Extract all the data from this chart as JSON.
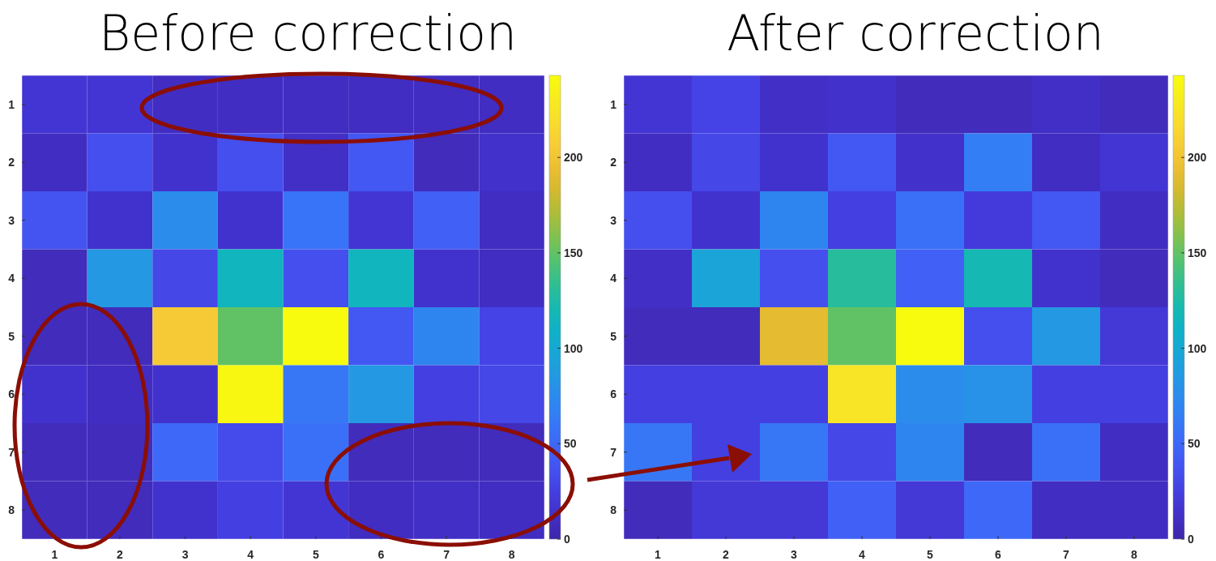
{
  "chart_data": [
    {
      "type": "heatmap",
      "title": "Before correction",
      "categories": [
        "1",
        "2",
        "3",
        "4",
        "5",
        "6",
        "7",
        "8"
      ],
      "y_categories": [
        "1",
        "2",
        "3",
        "4",
        "5",
        "6",
        "7",
        "8"
      ],
      "clim": [
        0,
        243
      ],
      "cticks": [
        0,
        50,
        100,
        150,
        200
      ],
      "cells": [
        [
          18,
          18,
          10,
          10,
          10,
          10,
          10,
          10
        ],
        [
          10,
          35,
          15,
          35,
          12,
          40,
          8,
          14
        ],
        [
          38,
          15,
          75,
          15,
          58,
          18,
          45,
          10
        ],
        [
          8,
          85,
          30,
          115,
          35,
          115,
          15,
          10
        ],
        [
          8,
          8,
          205,
          150,
          243,
          40,
          70,
          28
        ],
        [
          15,
          10,
          15,
          240,
          60,
          85,
          25,
          30
        ],
        [
          8,
          8,
          50,
          32,
          55,
          8,
          8,
          8
        ],
        [
          8,
          8,
          15,
          25,
          18,
          10,
          12,
          10
        ]
      ]
    },
    {
      "type": "heatmap",
      "title": "After correction",
      "categories": [
        "1",
        "2",
        "3",
        "4",
        "5",
        "6",
        "7",
        "8"
      ],
      "y_categories": [
        "1",
        "2",
        "3",
        "4",
        "5",
        "6",
        "7",
        "8"
      ],
      "clim": [
        0,
        243
      ],
      "cticks": [
        0,
        50,
        100,
        150,
        200
      ],
      "cells": [
        [
          18,
          28,
          12,
          14,
          8,
          8,
          12,
          8
        ],
        [
          10,
          30,
          15,
          40,
          14,
          65,
          10,
          18
        ],
        [
          35,
          15,
          70,
          25,
          55,
          22,
          40,
          10
        ],
        [
          12,
          95,
          35,
          130,
          45,
          120,
          15,
          8
        ],
        [
          8,
          8,
          190,
          150,
          243,
          35,
          85,
          20
        ],
        [
          25,
          25,
          25,
          225,
          75,
          80,
          25,
          25
        ],
        [
          60,
          25,
          60,
          30,
          70,
          8,
          55,
          10
        ],
        [
          8,
          20,
          20,
          45,
          20,
          50,
          10,
          10
        ]
      ]
    }
  ]
}
